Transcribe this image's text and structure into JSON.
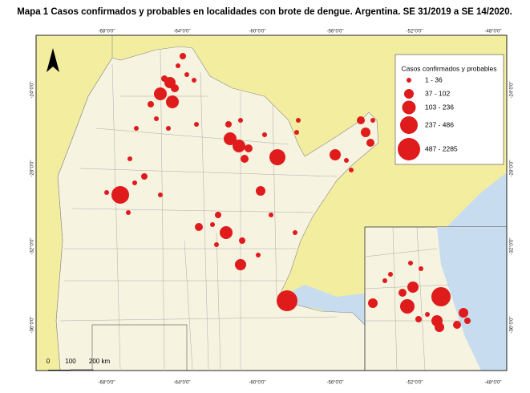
{
  "header": {
    "title": "Mapa 1 Casos confirmados y probables en localidades con brote de dengue. Argentina. SE 31/2019 a SE 14/2020."
  },
  "legend": {
    "title": "Casos confirmados y probables",
    "classes": [
      "1 - 36",
      "37 - 102",
      "103 - 236",
      "237 - 486",
      "487 - 2285"
    ]
  },
  "graticule": {
    "longitudes": [
      "-68°0'0\"",
      "-64°0'0\"",
      "-60°0'0\"",
      "-56°0'0\"",
      "-52°0'0\"",
      "-48°0'0\""
    ],
    "latitudes": [
      "-24°0'0\"",
      "-28°0'0\"",
      "-32°0'0\"",
      "-36°0'0\""
    ]
  },
  "scale_bar": {
    "labels": [
      "0",
      "100",
      "200 km"
    ]
  }
}
